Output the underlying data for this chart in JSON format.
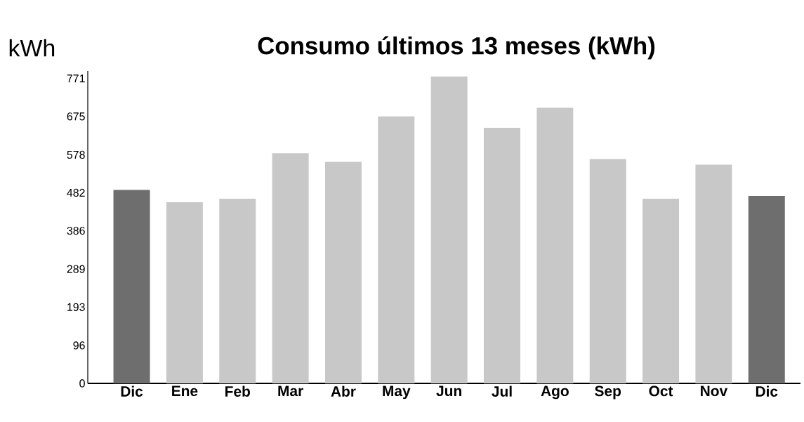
{
  "chart_data": {
    "type": "bar",
    "title": "Consumo últimos 13 meses (kWh)",
    "ylabel": "kWh",
    "categories": [
      "Dic",
      "Ene",
      "Feb",
      "Mar",
      "Abr",
      "May",
      "Jun",
      "Jul",
      "Ago",
      "Sep",
      "Oct",
      "Nov",
      "Dic"
    ],
    "values": [
      489,
      458,
      467,
      582,
      560,
      675,
      776,
      646,
      697,
      567,
      467,
      553,
      474
    ],
    "colors": [
      "#6e6e6e",
      "#c8c8c8",
      "#c8c8c8",
      "#c8c8c8",
      "#c8c8c8",
      "#c8c8c8",
      "#c8c8c8",
      "#c8c8c8",
      "#c8c8c8",
      "#c8c8c8",
      "#c8c8c8",
      "#c8c8c8",
      "#6e6e6e"
    ],
    "ylim": [
      0,
      790
    ],
    "yticks": [
      0,
      96,
      193,
      289,
      386,
      482,
      578,
      675,
      771
    ],
    "grid": false
  }
}
